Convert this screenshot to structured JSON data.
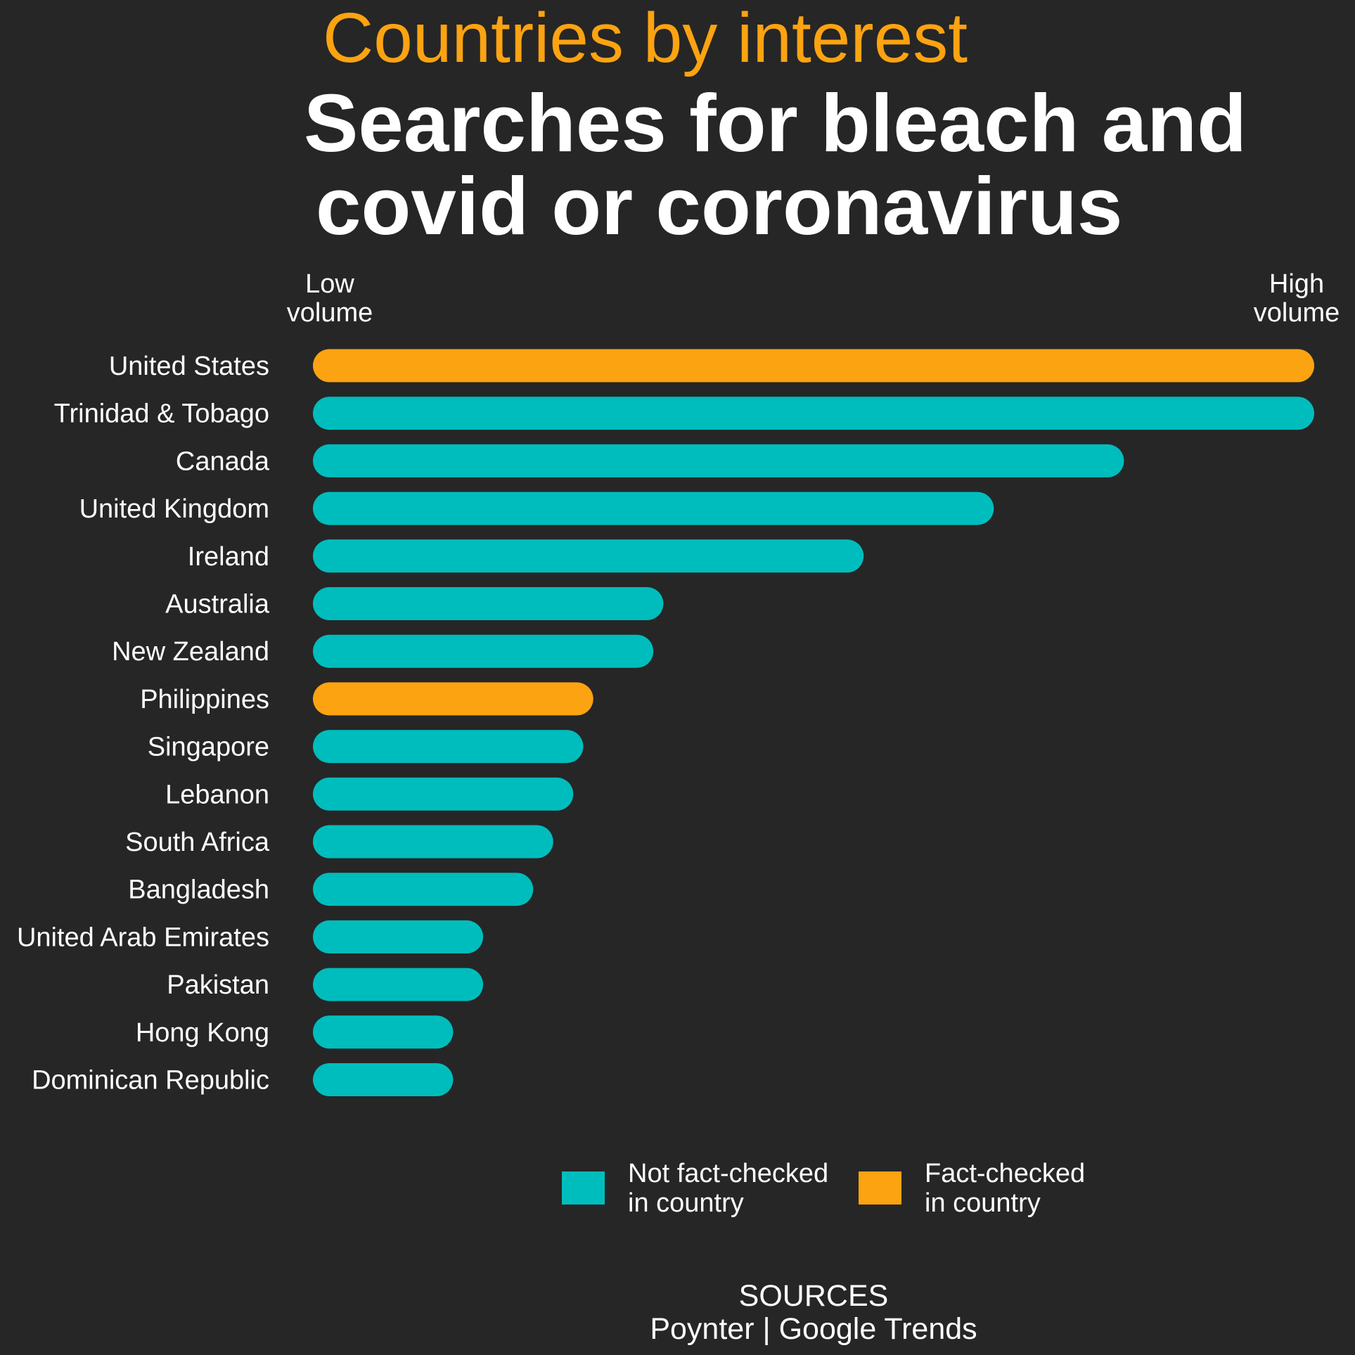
{
  "chart_data": {
    "type": "bar",
    "orientation": "horizontal",
    "kicker": "Countries by interest",
    "title_lines": [
      "Searches for bleach and",
      "covid or coronavirus"
    ],
    "axis_low_label": [
      "Low",
      "volume"
    ],
    "axis_high_label": [
      "High",
      "volume"
    ],
    "xlim": [
      0,
      100
    ],
    "grid": false,
    "colors": {
      "not_fact_checked": "#00bdbd",
      "fact_checked": "#fca311",
      "background": "#262626"
    },
    "categories": [
      "United States",
      "Trinidad & Tobago",
      "Canada",
      "United Kingdom",
      "Ireland",
      "Australia",
      "New Zealand",
      "Philippines",
      "Singapore",
      "Lebanon",
      "South Africa",
      "Bangladesh",
      "United Arab Emirates",
      "Pakistan",
      "Hong Kong",
      "Dominican Republic"
    ],
    "values": [
      100,
      100,
      81,
      68,
      55,
      35,
      34,
      28,
      27,
      26,
      24,
      22,
      17,
      17,
      14,
      14
    ],
    "fact_checked": [
      true,
      false,
      false,
      false,
      false,
      false,
      false,
      true,
      false,
      false,
      false,
      false,
      false,
      false,
      false,
      false
    ],
    "legend": {
      "position": "bottom",
      "items": [
        {
          "key": "not_fact_checked",
          "lines": [
            "Not fact-checked",
            "in country"
          ]
        },
        {
          "key": "fact_checked",
          "lines": [
            "Fact-checked",
            "in country"
          ]
        }
      ]
    },
    "source": [
      "SOURCES",
      "Poynter | Google Trends"
    ]
  }
}
